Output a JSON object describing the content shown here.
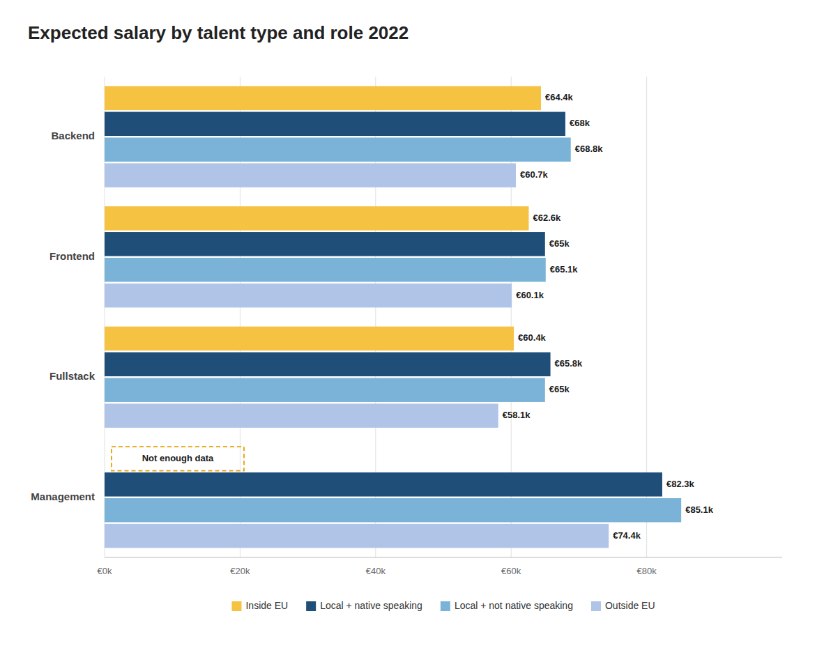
{
  "chart_data": {
    "type": "bar",
    "orientation": "horizontal",
    "title": "Expected salary by talent type and role 2022",
    "categories": [
      "Backend",
      "Frontend",
      "Fullstack",
      "Management"
    ],
    "series": [
      {
        "name": "Inside EU",
        "color": "#F5C242",
        "values": [
          64400,
          62600,
          60400,
          null
        ],
        "value_labels": [
          "€64.4k",
          "€62.6k",
          "€60.4k",
          null
        ]
      },
      {
        "name": "Local + native speaking",
        "color": "#1F4E79",
        "values": [
          68000,
          65000,
          65800,
          82300
        ],
        "value_labels": [
          "€68k",
          "€65k",
          "€65.8k",
          "€82.3k"
        ]
      },
      {
        "name": "Local + not native speaking",
        "color": "#7BB3D8",
        "values": [
          68800,
          65100,
          65000,
          85100
        ],
        "value_labels": [
          "€68.8k",
          "€65.1k",
          "€65k",
          "€85.1k"
        ]
      },
      {
        "name": "Outside EU",
        "color": "#B0C4E8",
        "values": [
          60700,
          60100,
          58100,
          74400
        ],
        "value_labels": [
          "€60.7k",
          "€60.1k",
          "€58.1k",
          "€74.4k"
        ]
      }
    ],
    "annotations": [
      {
        "text": "Not enough data",
        "category": "Management",
        "series": "Inside EU"
      }
    ],
    "xlim": [
      0,
      100000
    ],
    "xticks": [
      {
        "value": 0,
        "label": "€0k"
      },
      {
        "value": 20000,
        "label": "€20k"
      },
      {
        "value": 40000,
        "label": "€40k"
      },
      {
        "value": 60000,
        "label": "€60k"
      },
      {
        "value": 80000,
        "label": "€80k"
      }
    ],
    "grid": true,
    "data_labels": true,
    "legend": "bottom"
  }
}
